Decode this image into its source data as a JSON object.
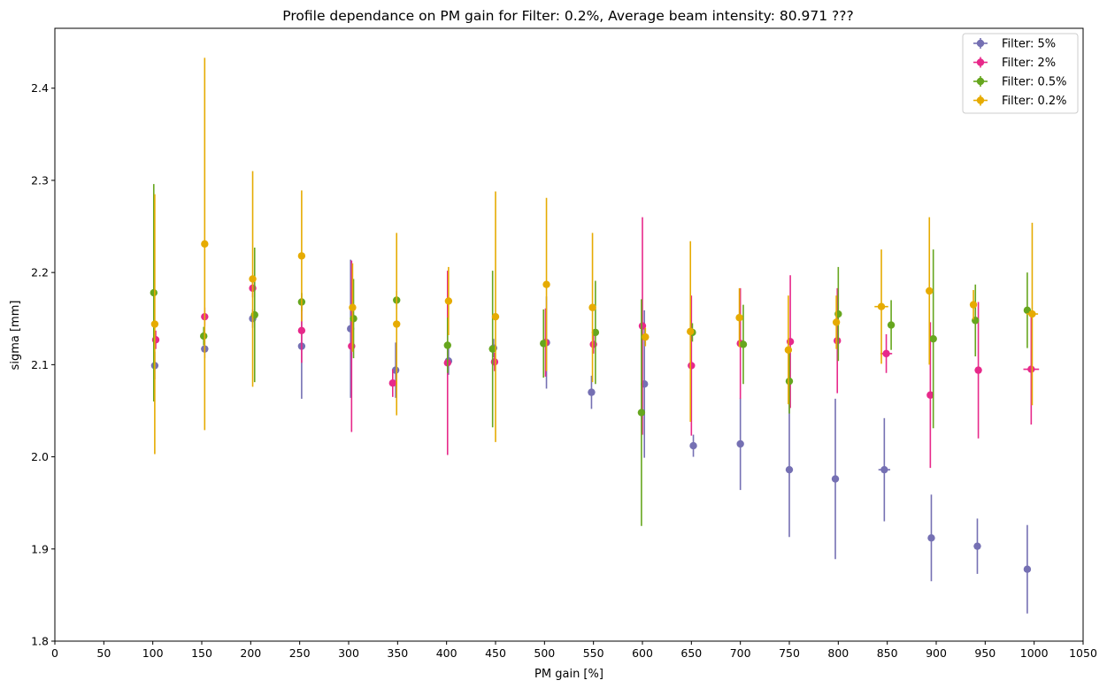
{
  "chart_data": {
    "type": "scatter",
    "title": "Profile dependance on PM gain for Filter: 0.2%, Average beam intensity: 80.971 ???",
    "xlabel": "PM gain [%]",
    "ylabel": "sigma [mm]",
    "xlim": [
      0,
      1050
    ],
    "ylim": [
      1.8,
      2.465
    ],
    "xticks": [
      0,
      50,
      100,
      150,
      200,
      250,
      300,
      350,
      400,
      450,
      500,
      550,
      600,
      650,
      700,
      750,
      800,
      850,
      900,
      950,
      1000,
      1050
    ],
    "yticks": [
      1.8,
      1.9,
      2.0,
      2.1,
      2.2,
      2.3,
      2.4
    ],
    "grid": false,
    "legend_position": "upper right",
    "error_bars": true,
    "series": [
      {
        "name": "Filter: 5%",
        "color": "#7570b3",
        "x": [
          102,
          153,
          202,
          252,
          302,
          348,
          402,
          448,
          502,
          548,
          602,
          652,
          700,
          750,
          797,
          847,
          895,
          942,
          993
        ],
        "y": [
          2.099,
          2.117,
          2.15,
          2.12,
          2.139,
          2.094,
          2.104,
          2.118,
          2.124,
          2.07,
          2.079,
          2.012,
          2.014,
          1.986,
          1.976,
          1.986,
          1.912,
          1.903,
          1.878
        ],
        "yerr": [
          0.015,
          0.01,
          0.01,
          0.057,
          0.075,
          0.03,
          0.015,
          0.01,
          0.05,
          0.018,
          0.08,
          0.012,
          0.05,
          0.073,
          0.087,
          0.056,
          0.047,
          0.03,
          0.048
        ],
        "xerr": [
          0,
          0,
          0,
          0,
          0,
          0,
          0,
          0,
          0,
          0,
          0,
          0,
          0,
          0,
          0,
          6,
          0,
          0,
          0
        ]
      },
      {
        "name": "Filter: 2%",
        "color": "#e7298a",
        "x": [
          103,
          153,
          202,
          252,
          303,
          345,
          401,
          449,
          501,
          550,
          600,
          650,
          700,
          751,
          799,
          849,
          894,
          943,
          997
        ],
        "y": [
          2.127,
          2.152,
          2.183,
          2.137,
          2.12,
          2.08,
          2.102,
          2.103,
          2.124,
          2.122,
          2.142,
          2.099,
          2.123,
          2.125,
          2.126,
          2.112,
          2.067,
          2.094,
          2.095
        ],
        "yerr": [
          0.01,
          0.01,
          0.01,
          0.035,
          0.093,
          0.015,
          0.1,
          0.01,
          0.037,
          0.01,
          0.118,
          0.076,
          0.06,
          0.072,
          0.057,
          0.021,
          0.079,
          0.074,
          0.06
        ],
        "xerr": [
          0,
          0,
          0,
          0,
          0,
          0,
          0,
          0,
          0,
          0,
          0,
          0,
          0,
          0,
          0,
          6,
          0,
          0,
          8
        ]
      },
      {
        "name": "Filter: 0.5%",
        "color": "#66a61e",
        "x": [
          101,
          152,
          204,
          252,
          305,
          349,
          401,
          447,
          499,
          552,
          599,
          651,
          703,
          750,
          800,
          854,
          897,
          940,
          993
        ],
        "y": [
          2.178,
          2.131,
          2.154,
          2.168,
          2.15,
          2.17,
          2.121,
          2.117,
          2.123,
          2.135,
          2.048,
          2.135,
          2.122,
          2.082,
          2.155,
          2.143,
          2.128,
          2.148,
          2.159
        ],
        "yerr": [
          0.118,
          0.01,
          0.073,
          0.01,
          0.043,
          0.01,
          0.03,
          0.085,
          0.037,
          0.056,
          0.123,
          0.01,
          0.043,
          0.035,
          0.051,
          0.027,
          0.097,
          0.039,
          0.041
        ],
        "xerr": [
          0,
          0,
          0,
          0,
          0,
          0,
          0,
          0,
          0,
          0,
          0,
          0,
          0,
          0,
          0,
          0,
          0,
          0,
          0
        ]
      },
      {
        "name": "Filter: 0.2%",
        "color": "#e6ab02",
        "x": [
          102,
          153,
          202,
          252,
          304,
          349,
          402,
          450,
          502,
          549,
          603,
          649,
          699,
          749,
          798,
          844,
          893,
          938,
          998
        ],
        "y": [
          2.144,
          2.231,
          2.193,
          2.218,
          2.162,
          2.144,
          2.169,
          2.152,
          2.187,
          2.162,
          2.13,
          2.136,
          2.151,
          2.116,
          2.146,
          2.163,
          2.18,
          2.165,
          2.155
        ],
        "yerr": [
          0.141,
          0.202,
          0.117,
          0.071,
          0.048,
          0.099,
          0.037,
          0.136,
          0.094,
          0.081,
          0.01,
          0.098,
          0.032,
          0.059,
          0.029,
          0.062,
          0.08,
          0.016,
          0.099
        ],
        "xerr": [
          0,
          0,
          0,
          0,
          0,
          0,
          0,
          0,
          0,
          0,
          0,
          0,
          0,
          0,
          0,
          7,
          0,
          0,
          6
        ]
      }
    ]
  }
}
